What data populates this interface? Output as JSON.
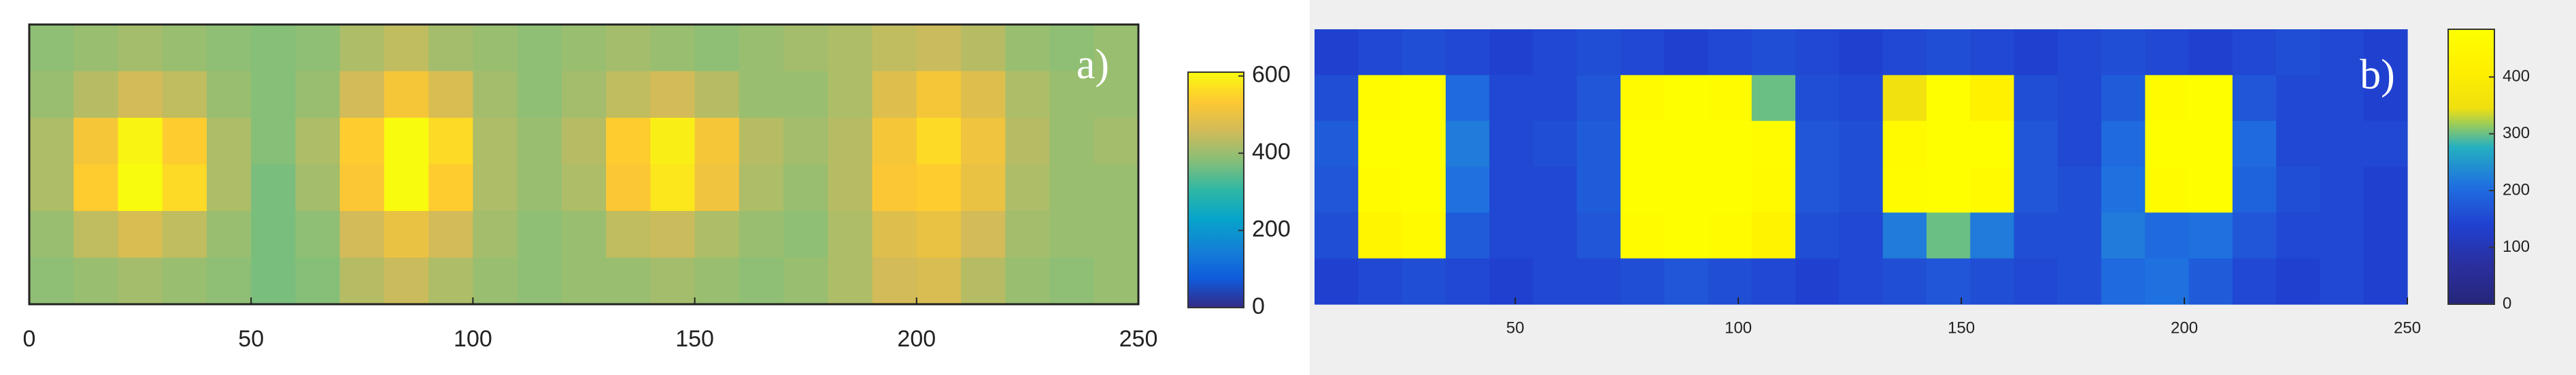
{
  "chart_data": [
    {
      "type": "heatmap",
      "annotation": "a)",
      "xlim": [
        0,
        250
      ],
      "xticks": [
        0,
        50,
        100,
        150,
        200,
        250
      ],
      "clim": [
        0,
        610
      ],
      "cticks": [
        0,
        200,
        400,
        600
      ],
      "colormap": [
        "#352a87",
        "#0f5cdd",
        "#1481d6",
        "#06a4ca",
        "#2eb7a4",
        "#87bf77",
        "#d1bb59",
        "#fec832",
        "#f9fb0e"
      ],
      "z": [
        [
          390,
          400,
          410,
          400,
          390,
          380,
          390,
          420,
          440,
          410,
          400,
          390,
          400,
          410,
          400,
          390,
          400,
          410,
          420,
          440,
          450,
          430,
          400,
          390,
          400
        ],
        [
          400,
          430,
          460,
          440,
          400,
          380,
          400,
          460,
          520,
          470,
          410,
          390,
          410,
          440,
          460,
          430,
          400,
          400,
          420,
          480,
          520,
          480,
          420,
          400,
          400
        ],
        [
          420,
          520,
          600,
          540,
          420,
          380,
          420,
          540,
          620,
          560,
          420,
          400,
          430,
          540,
          590,
          520,
          430,
          410,
          430,
          520,
          560,
          510,
          430,
          400,
          410
        ],
        [
          420,
          540,
          610,
          560,
          420,
          370,
          410,
          530,
          610,
          540,
          420,
          400,
          420,
          530,
          580,
          510,
          420,
          400,
          430,
          530,
          540,
          500,
          420,
          400,
          400
        ],
        [
          400,
          440,
          470,
          440,
          400,
          370,
          390,
          460,
          500,
          460,
          410,
          390,
          400,
          440,
          450,
          420,
          400,
          390,
          420,
          480,
          500,
          460,
          410,
          400,
          400
        ],
        [
          390,
          400,
          410,
          400,
          390,
          370,
          380,
          430,
          450,
          420,
          400,
          390,
          400,
          400,
          410,
          400,
          390,
          400,
          420,
          460,
          470,
          430,
          400,
          390,
          400
        ]
      ]
    },
    {
      "type": "heatmap",
      "annotation": "b)",
      "xlim": [
        5,
        250
      ],
      "xticks": [
        50,
        100,
        150,
        200,
        250
      ],
      "clim": [
        0,
        484
      ],
      "cticks": [
        0,
        100,
        200,
        300,
        400
      ],
      "colormap": [
        "#26267a",
        "#2a2f9e",
        "#2040d0",
        "#1f6fe0",
        "#25b0c0",
        "#f0e010",
        "#fff000",
        "#ffff00"
      ],
      "z": [
        [
          140,
          150,
          160,
          150,
          140,
          150,
          160,
          150,
          140,
          150,
          160,
          150,
          140,
          150,
          160,
          150,
          140,
          150,
          160,
          150,
          140,
          150,
          160,
          150,
          140
        ],
        [
          160,
          470,
          480,
          200,
          150,
          150,
          170,
          460,
          480,
          470,
          300,
          160,
          150,
          350,
          480,
          420,
          160,
          150,
          180,
          470,
          480,
          170,
          150,
          150,
          140
        ],
        [
          180,
          480,
          480,
          220,
          150,
          160,
          180,
          480,
          480,
          480,
          470,
          170,
          160,
          460,
          480,
          480,
          170,
          150,
          200,
          480,
          480,
          200,
          150,
          150,
          150
        ],
        [
          170,
          470,
          480,
          210,
          150,
          150,
          180,
          480,
          480,
          480,
          460,
          170,
          160,
          470,
          480,
          460,
          170,
          160,
          210,
          470,
          480,
          190,
          160,
          150,
          140
        ],
        [
          160,
          440,
          460,
          180,
          150,
          150,
          170,
          470,
          480,
          470,
          430,
          160,
          150,
          220,
          300,
          220,
          160,
          160,
          220,
          200,
          210,
          170,
          150,
          150,
          140
        ],
        [
          140,
          150,
          160,
          150,
          140,
          150,
          150,
          160,
          170,
          160,
          150,
          140,
          150,
          160,
          170,
          160,
          150,
          160,
          200,
          210,
          180,
          150,
          140,
          150,
          140
        ]
      ]
    }
  ]
}
